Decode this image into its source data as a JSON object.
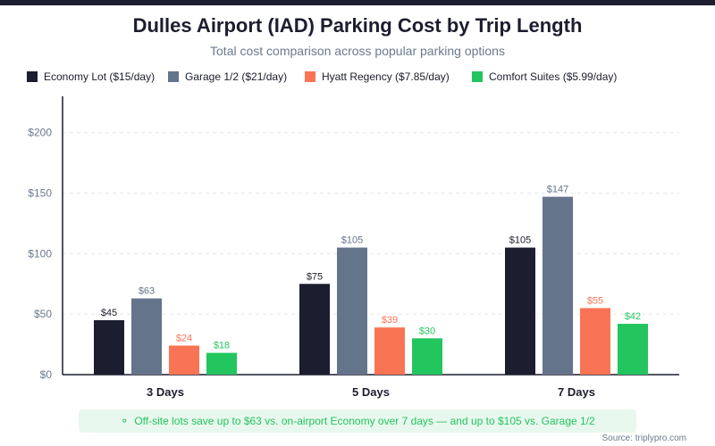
{
  "title": "Dulles Airport (IAD) Parking Cost by Trip Length",
  "subtitle": "Total cost comparison across popular parking options",
  "callout": {
    "icon": "lightbulb-icon",
    "text": "Off-site lots save up to $63 vs. on-airport Economy over 7 days — and up to $105 vs. Garage 1/2"
  },
  "source": "Source: triplypro.com",
  "chart_data": {
    "type": "bar",
    "title": "Dulles Airport (IAD) Parking Cost by Trip Length",
    "subtitle": "Total cost comparison across popular parking options",
    "categories": [
      "3 Days",
      "5 Days",
      "7 Days"
    ],
    "series": [
      {
        "name": "Economy Lot ($15/day)",
        "color": "#1c1d2e",
        "values": [
          45,
          75,
          105
        ],
        "labels": [
          "$45",
          "$75",
          "$105"
        ]
      },
      {
        "name": "Garage 1/2 ($21/day)",
        "color": "#64748b",
        "values": [
          63,
          105,
          147
        ],
        "labels": [
          "$63",
          "$105",
          "$147"
        ]
      },
      {
        "name": "Hyatt Regency ($7.85/day)",
        "color": "#f87455",
        "values": [
          24,
          39,
          55
        ],
        "labels": [
          "$24",
          "$39",
          "$55"
        ]
      },
      {
        "name": "Comfort Suites ($5.99/day)",
        "color": "#22c55e",
        "values": [
          18,
          30,
          42
        ],
        "labels": [
          "$18",
          "$30",
          "$42"
        ]
      }
    ],
    "yticks": [
      0,
      50,
      100,
      150,
      200
    ],
    "ytick_labels": [
      "$0",
      "$50",
      "$100",
      "$150",
      "$200"
    ],
    "ylim": [
      0,
      230
    ],
    "xlabel": "",
    "ylabel": "",
    "grid": true,
    "legend": "top-left"
  }
}
